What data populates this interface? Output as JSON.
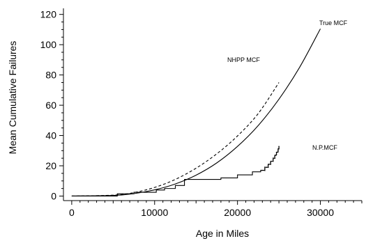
{
  "chart_data": {
    "type": "line",
    "title": "",
    "xlabel": "Age in Miles",
    "ylabel": "Mean Cumulative Failures",
    "xlim": [
      -1000,
      35000
    ],
    "ylim": [
      -3,
      124
    ],
    "xticks": [
      0,
      10000,
      20000,
      30000
    ],
    "yticks": [
      0,
      20,
      40,
      60,
      80,
      100,
      120
    ],
    "grid": false,
    "legend": "none",
    "series": [
      {
        "name": "True MCF",
        "style": "solid",
        "x": [
          0,
          5000,
          7500,
          10000,
          12500,
          15000,
          17500,
          20000,
          22500,
          25000,
          27500,
          30000
        ],
        "y": [
          0,
          0.4,
          1.6,
          4.1,
          8.0,
          13.8,
          21.9,
          32.8,
          46.6,
          64.0,
          85.1,
          110.5
        ]
      },
      {
        "name": "NHPP MCF",
        "style": "dashed",
        "x": [
          0,
          5000,
          7500,
          10000,
          12500,
          15000,
          17500,
          20000,
          22500,
          25000
        ],
        "y": [
          0,
          0.6,
          2.3,
          5.7,
          11.0,
          18.4,
          27.9,
          39.7,
          54.5,
          75.0
        ]
      },
      {
        "name": "N.P.MCF",
        "style": "step",
        "x": [
          0,
          5500,
          7500,
          10200,
          11200,
          12500,
          13600,
          18000,
          20000,
          21800,
          22800,
          23300,
          23700,
          24000,
          24300,
          24500,
          24700,
          24900,
          25000
        ],
        "y": [
          0,
          1.5,
          2.5,
          4,
          5,
          7,
          11,
          12,
          14,
          16,
          17,
          19,
          21,
          23,
          25,
          27,
          29,
          31,
          33
        ]
      }
    ]
  }
}
